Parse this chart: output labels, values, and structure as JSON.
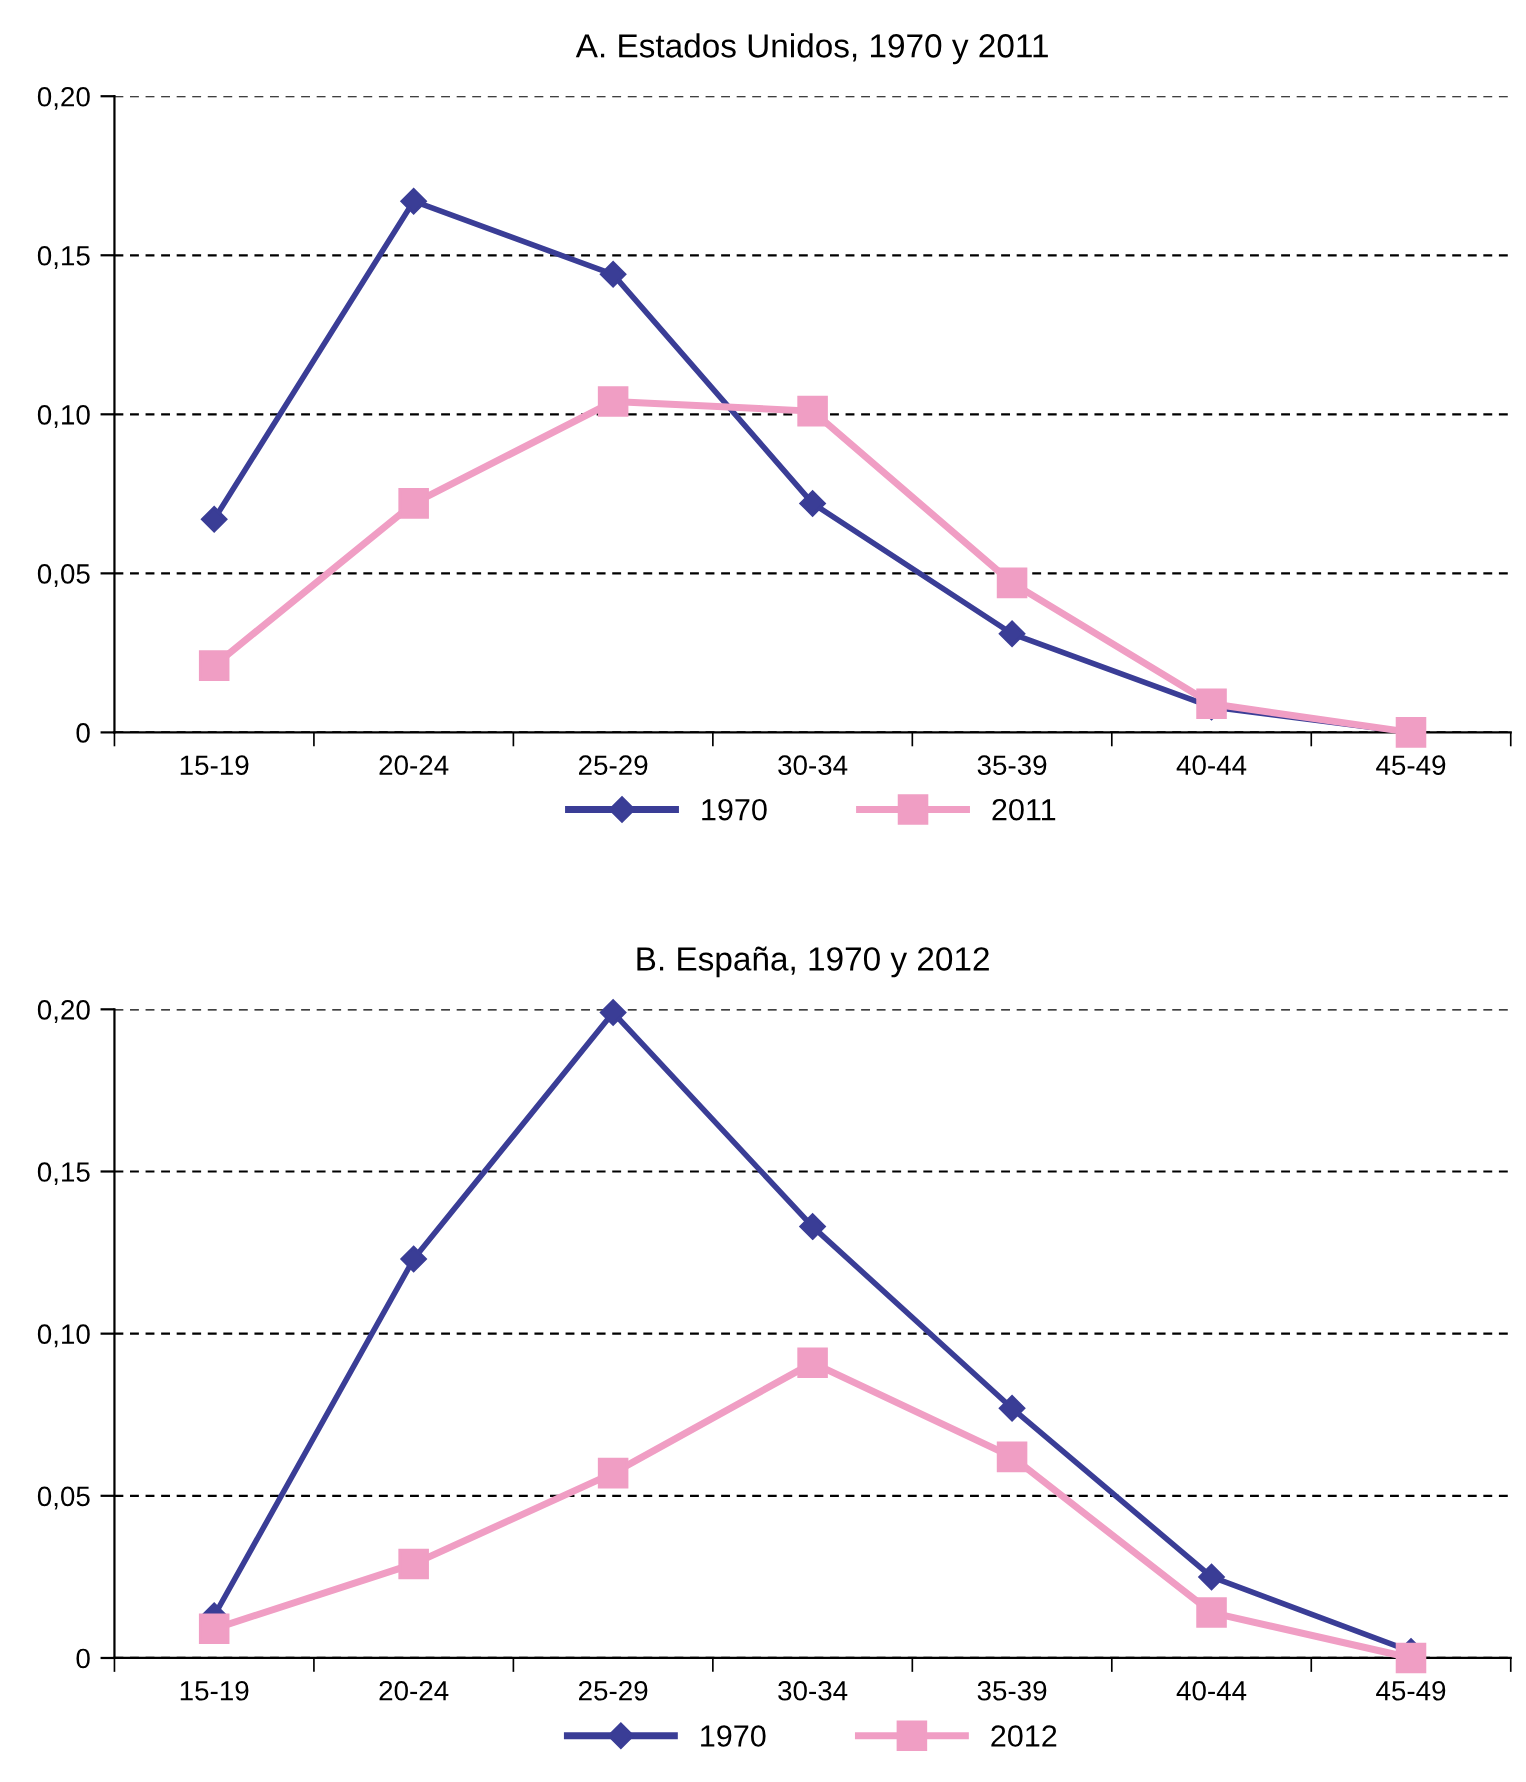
{
  "chart_data": [
    {
      "type": "line",
      "title": "A. Estados Unidos, 1970 y 2011",
      "categories": [
        "15-19",
        "20-24",
        "25-29",
        "30-34",
        "35-39",
        "40-44",
        "45-49"
      ],
      "series": [
        {
          "name": "1970",
          "color": "#3a3d96",
          "marker": "diamond",
          "values": [
            0.067,
            0.167,
            0.144,
            0.072,
            0.031,
            0.008,
            0.0
          ]
        },
        {
          "name": "2011",
          "color": "#f09ec4",
          "marker": "square",
          "values": [
            0.021,
            0.072,
            0.104,
            0.101,
            0.047,
            0.009,
            0.0
          ]
        }
      ],
      "ylim": [
        0,
        0.2
      ],
      "yticks": [
        0,
        {
          "value": 0.05,
          "label": "0,05"
        },
        {
          "value": 0.1,
          "label": "0,10"
        },
        {
          "value": 0.15,
          "label": "0,15"
        },
        {
          "value": 0.2,
          "label": "0,20"
        }
      ],
      "grid": "y",
      "legend": "bottom",
      "line_style": "solid"
    },
    {
      "type": "line",
      "title": "B. España, 1970 y 2012",
      "categories": [
        "15-19",
        "20-24",
        "25-29",
        "30-34",
        "35-39",
        "40-44",
        "45-49"
      ],
      "series": [
        {
          "name": "1970",
          "color": "#3a3d96",
          "marker": "diamond",
          "values": [
            0.013,
            0.123,
            0.199,
            0.133,
            0.077,
            0.025,
            0.002
          ]
        },
        {
          "name": "2012",
          "color": "#f09ec4",
          "marker": "square",
          "values": [
            0.009,
            0.029,
            0.057,
            0.091,
            0.062,
            0.014,
            0.0
          ]
        }
      ],
      "ylim": [
        0,
        0.2
      ],
      "yticks": [
        0,
        {
          "value": 0.05,
          "label": "0,05"
        },
        {
          "value": 0.1,
          "label": "0,10"
        },
        {
          "value": 0.15,
          "label": "0,15"
        },
        {
          "value": 0.2,
          "label": "0,20"
        }
      ],
      "grid": "y",
      "legend": "bottom",
      "line_style": "solid"
    }
  ]
}
